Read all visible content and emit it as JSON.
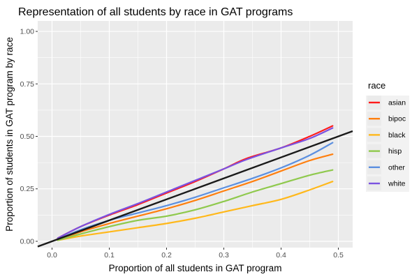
{
  "chart_data": {
    "type": "line",
    "title": "Representation of all students by race in GAT programs",
    "xlabel": "Proportion of all students in GAT program",
    "ylabel": "Proportion of students in GAT program by race",
    "xlim": [
      -0.025,
      0.525
    ],
    "ylim": [
      -0.03,
      1.05
    ],
    "x_ticks": [
      0.0,
      0.1,
      0.2,
      0.3,
      0.4,
      0.5
    ],
    "x_tick_labels": [
      "0.0",
      "0.1",
      "0.2",
      "0.3",
      "0.4",
      "0.5"
    ],
    "y_ticks": [
      0.0,
      0.25,
      0.5,
      0.75,
      1.0
    ],
    "y_tick_labels": [
      "0.00",
      "0.25",
      "0.50",
      "0.75",
      "1.00"
    ],
    "grid": true,
    "background": "#ebebeb",
    "legend": {
      "title": "race",
      "placement": "right"
    },
    "series": [
      {
        "name": "asian",
        "color": "#ff1a1a",
        "points": [
          [
            0.01,
            0.015
          ],
          [
            0.05,
            0.07
          ],
          [
            0.1,
            0.125
          ],
          [
            0.15,
            0.175
          ],
          [
            0.2,
            0.23
          ],
          [
            0.25,
            0.285
          ],
          [
            0.3,
            0.345
          ],
          [
            0.34,
            0.395
          ],
          [
            0.4,
            0.445
          ],
          [
            0.45,
            0.5
          ],
          [
            0.49,
            0.55
          ]
        ]
      },
      {
        "name": "bipoc",
        "color": "#ff7f0e",
        "points": [
          [
            0.01,
            0.005
          ],
          [
            0.05,
            0.045
          ],
          [
            0.1,
            0.085
          ],
          [
            0.15,
            0.12
          ],
          [
            0.2,
            0.155
          ],
          [
            0.25,
            0.195
          ],
          [
            0.3,
            0.24
          ],
          [
            0.35,
            0.285
          ],
          [
            0.4,
            0.335
          ],
          [
            0.45,
            0.385
          ],
          [
            0.49,
            0.415
          ]
        ]
      },
      {
        "name": "black",
        "color": "#ffb81a",
        "points": [
          [
            0.01,
            0.005
          ],
          [
            0.05,
            0.025
          ],
          [
            0.1,
            0.045
          ],
          [
            0.15,
            0.065
          ],
          [
            0.2,
            0.085
          ],
          [
            0.25,
            0.11
          ],
          [
            0.3,
            0.14
          ],
          [
            0.35,
            0.17
          ],
          [
            0.4,
            0.2
          ],
          [
            0.45,
            0.245
          ],
          [
            0.49,
            0.285
          ]
        ]
      },
      {
        "name": "hisp",
        "color": "#8fc94d",
        "points": [
          [
            0.01,
            0.005
          ],
          [
            0.05,
            0.035
          ],
          [
            0.1,
            0.07
          ],
          [
            0.15,
            0.1
          ],
          [
            0.2,
            0.12
          ],
          [
            0.25,
            0.15
          ],
          [
            0.3,
            0.19
          ],
          [
            0.35,
            0.235
          ],
          [
            0.4,
            0.275
          ],
          [
            0.45,
            0.315
          ],
          [
            0.49,
            0.34
          ]
        ]
      },
      {
        "name": "other",
        "color": "#5b8fe0",
        "points": [
          [
            0.01,
            0.01
          ],
          [
            0.05,
            0.055
          ],
          [
            0.1,
            0.1
          ],
          [
            0.15,
            0.135
          ],
          [
            0.2,
            0.17
          ],
          [
            0.25,
            0.21
          ],
          [
            0.3,
            0.255
          ],
          [
            0.35,
            0.3
          ],
          [
            0.4,
            0.35
          ],
          [
            0.45,
            0.41
          ],
          [
            0.49,
            0.47
          ]
        ]
      },
      {
        "name": "white",
        "color": "#7b52e0",
        "points": [
          [
            0.01,
            0.015
          ],
          [
            0.05,
            0.07
          ],
          [
            0.1,
            0.128
          ],
          [
            0.15,
            0.18
          ],
          [
            0.2,
            0.235
          ],
          [
            0.25,
            0.29
          ],
          [
            0.3,
            0.345
          ],
          [
            0.34,
            0.39
          ],
          [
            0.4,
            0.445
          ],
          [
            0.45,
            0.49
          ],
          [
            0.49,
            0.54
          ]
        ]
      }
    ],
    "reference_line": {
      "color": "#1a1a1a",
      "points": [
        [
          -0.025,
          -0.025
        ],
        [
          0.525,
          0.525
        ]
      ]
    }
  }
}
